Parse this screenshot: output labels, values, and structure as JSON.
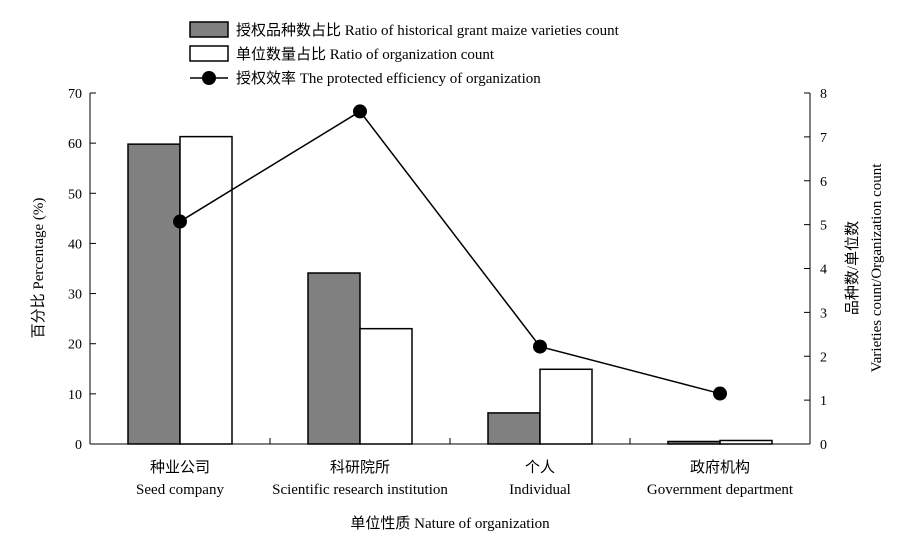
{
  "chart_data": {
    "type": "bar",
    "categories": [
      {
        "zh": "种业公司",
        "en": "Seed company"
      },
      {
        "zh": "科研院所",
        "en": "Scientific research institution"
      },
      {
        "zh": "个人",
        "en": "Individual"
      },
      {
        "zh": "政府机构",
        "en": "Government department"
      }
    ],
    "series": [
      {
        "name": "授权品种数占比 Ratio of historical grant maize varieties count",
        "kind": "bar",
        "axis": "left",
        "color": "#808080",
        "values": [
          59.8,
          34.1,
          6.2,
          0.5
        ]
      },
      {
        "name": "单位数量占比 Ratio of organization count",
        "kind": "bar",
        "axis": "left",
        "color": "#ffffff",
        "values": [
          61.3,
          23.0,
          14.9,
          0.7
        ]
      },
      {
        "name": "授权效率 The protected efficiency of organization",
        "kind": "line",
        "axis": "right",
        "color": "#000000",
        "values": [
          5.07,
          7.58,
          2.22,
          1.15
        ]
      }
    ],
    "xlabel": "单位性质 Nature of organization",
    "ylabel_left": "百分比 Percentage (%)",
    "ylabel_right": [
      "品种数/单位数",
      "Varieties count/Organization count"
    ],
    "ylim_left": [
      0,
      70
    ],
    "yticks_left": [
      0,
      10,
      20,
      30,
      40,
      50,
      60,
      70
    ],
    "ylim_right": [
      0,
      8
    ],
    "yticks_right": [
      0,
      1,
      2,
      3,
      4,
      5,
      6,
      7,
      8
    ],
    "legend_position": "top-center",
    "grid": false
  }
}
